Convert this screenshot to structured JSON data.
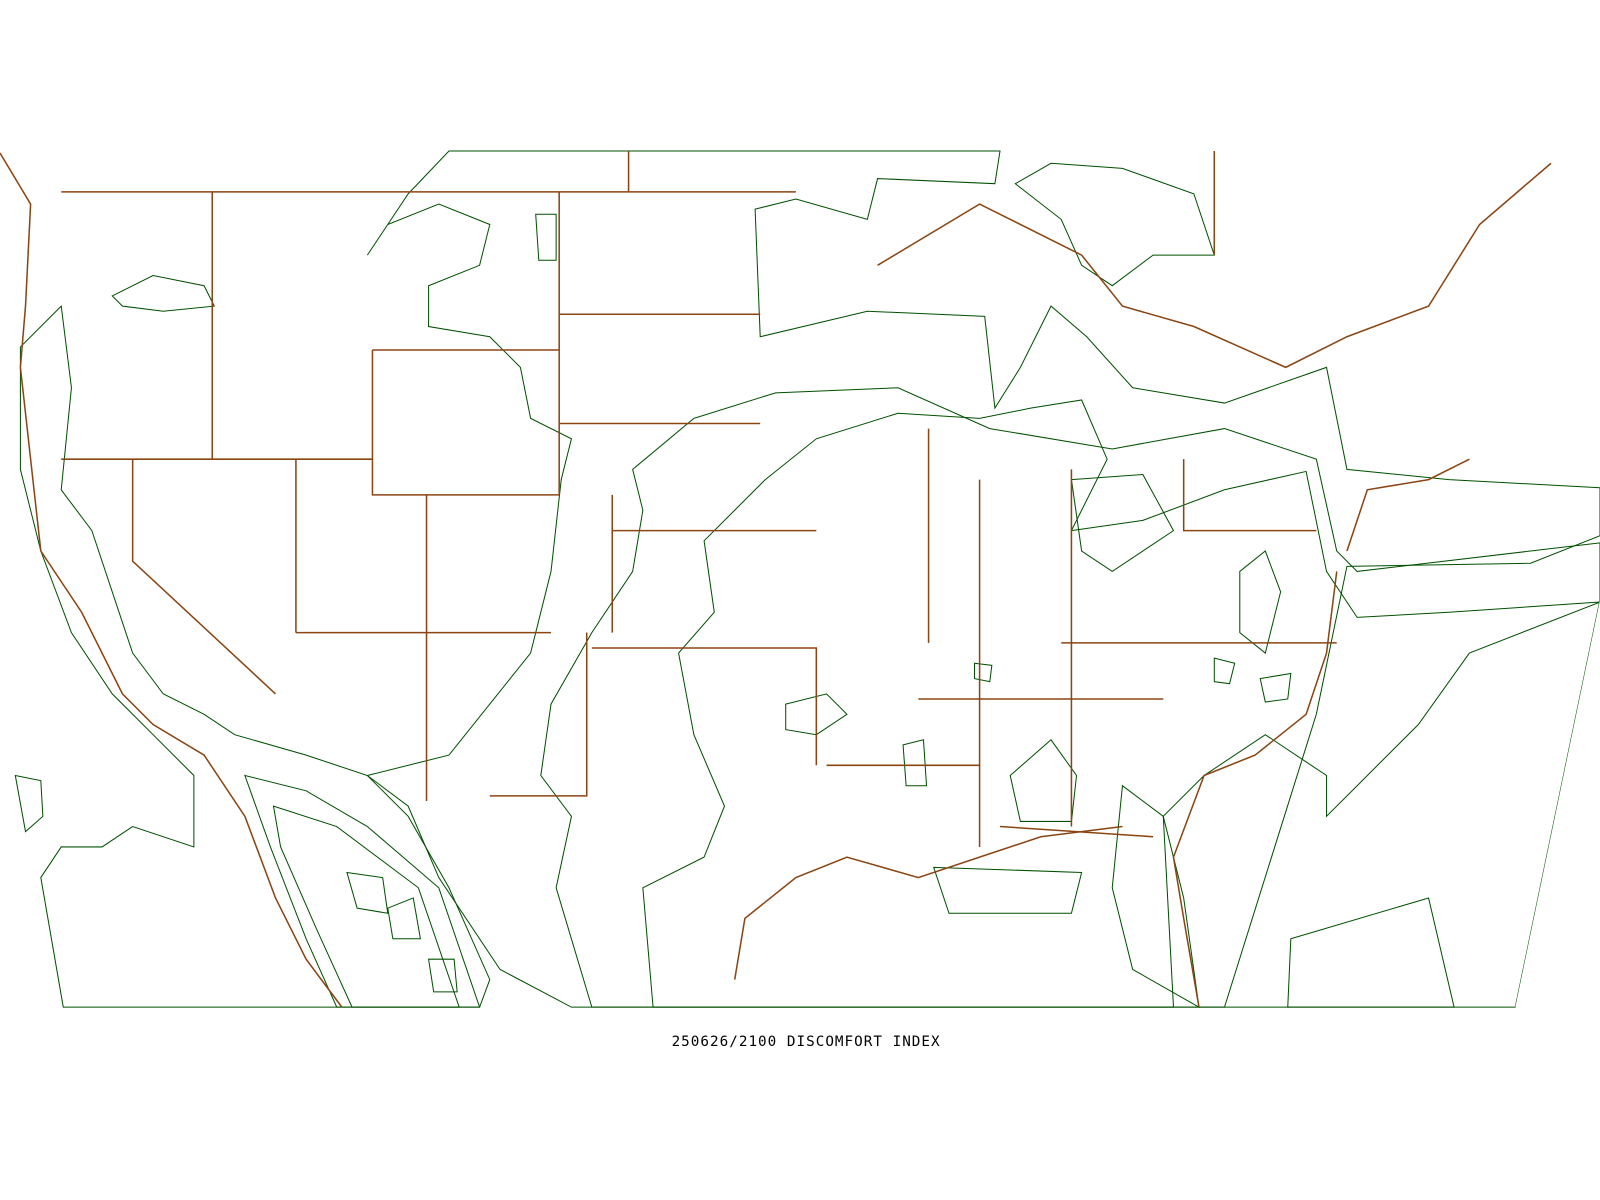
{
  "caption": "250626/2100 DISCOMFORT INDEX"
}
